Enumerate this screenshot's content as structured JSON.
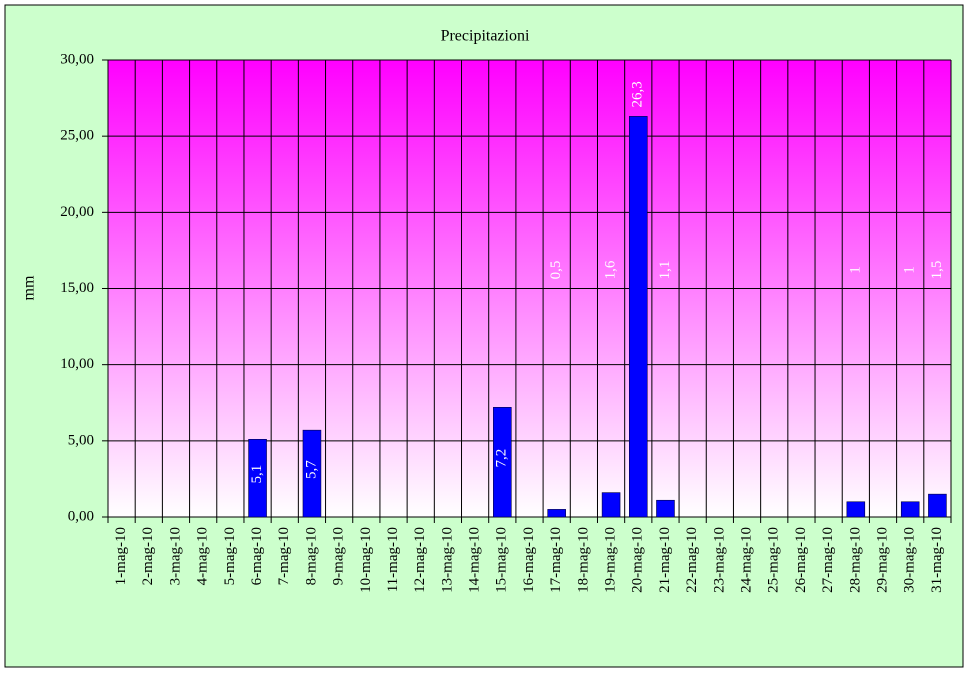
{
  "chart_data": {
    "type": "bar",
    "title": "Precipitazioni",
    "y_label": "mm",
    "categories": [
      "1-mag-10",
      "2-mag-10",
      "3-mag-10",
      "4-mag-10",
      "5-mag-10",
      "6-mag-10",
      "7-mag-10",
      "8-mag-10",
      "9-mag-10",
      "10-mag-10",
      "11-mag-10",
      "12-mag-10",
      "13-mag-10",
      "14-mag-10",
      "15-mag-10",
      "16-mag-10",
      "17-mag-10",
      "18-mag-10",
      "19-mag-10",
      "20-mag-10",
      "21-mag-10",
      "22-mag-10",
      "23-mag-10",
      "24-mag-10",
      "25-mag-10",
      "26-mag-10",
      "27-mag-10",
      "28-mag-10",
      "29-mag-10",
      "30-mag-10",
      "31-mag-10"
    ],
    "values": [
      0,
      0,
      0,
      0,
      0,
      5.1,
      0,
      5.7,
      0,
      0,
      0,
      0,
      0,
      0,
      7.2,
      0,
      0.5,
      0,
      1.6,
      26.3,
      1.1,
      0,
      0,
      0,
      0,
      0,
      0,
      1,
      0,
      1,
      1.5
    ],
    "value_labels": [
      null,
      null,
      null,
      null,
      null,
      "5,1",
      null,
      "5,7",
      null,
      null,
      null,
      null,
      null,
      null,
      "7,2",
      null,
      "0,5",
      null,
      "1,6",
      "26,3",
      "1,1",
      null,
      null,
      null,
      null,
      null,
      null,
      "1",
      null,
      "1",
      "1,5"
    ],
    "color": "#0000ff",
    "ylim": [
      0,
      30
    ],
    "yticks": [
      {
        "value": 0,
        "label": "0,00"
      },
      {
        "value": 5,
        "label": "5,00"
      },
      {
        "value": 10,
        "label": "10,00"
      },
      {
        "value": 15,
        "label": "15,00"
      },
      {
        "value": 20,
        "label": "20,00"
      },
      {
        "value": 25,
        "label": "25,00"
      },
      {
        "value": 30,
        "label": "30,00"
      }
    ],
    "grid": true
  }
}
